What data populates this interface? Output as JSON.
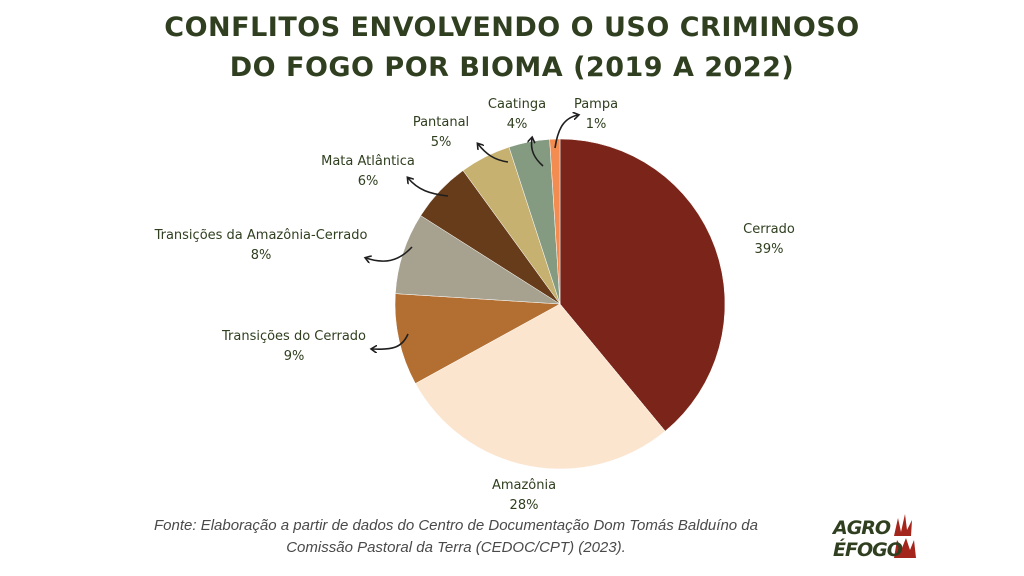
{
  "header": {
    "title_line1": "CONFLITOS ENVOLVENDO O USO CRIMINOSO",
    "title_line2": "DO FOGO POR BIOMA (2019 A 2022)"
  },
  "footer": {
    "source_line1": "Fonte: Elaboração a partir de dados do Centro de Documentação Dom Tomás Balduíno da",
    "source_line2": "Comissão Pastoral da Terra (CEDOC/CPT) (2023).",
    "logo_line1": "AGRO",
    "logo_line2": "ÉFOGO"
  },
  "chart_data": {
    "type": "pie",
    "title": "CONFLITOS ENVOLVENDO O USO CRIMINOSO DO FOGO POR BIOMA (2019 A 2022)",
    "unit": "%",
    "slices": [
      {
        "label": "Cerrado",
        "value": 39,
        "value_label": "39%",
        "color": "#7b2419"
      },
      {
        "label": "Amazônia",
        "value": 28,
        "value_label": "28%",
        "color": "#fbe5cf"
      },
      {
        "label": "Transições do Cerrado",
        "value": 9,
        "value_label": "9%",
        "color": "#b36f31"
      },
      {
        "label": "Transições da Amazônia-Cerrado",
        "value": 8,
        "value_label": "8%",
        "color": "#a7a290"
      },
      {
        "label": "Mata Atlântica",
        "value": 6,
        "value_label": "6%",
        "color": "#663c1a"
      },
      {
        "label": "Pantanal",
        "value": 5,
        "value_label": "5%",
        "color": "#c6b170"
      },
      {
        "label": "Caatinga",
        "value": 4,
        "value_label": "4%",
        "color": "#849b82"
      },
      {
        "label": "Pampa",
        "value": 1,
        "value_label": "1%",
        "color": "#f28c50"
      }
    ]
  }
}
